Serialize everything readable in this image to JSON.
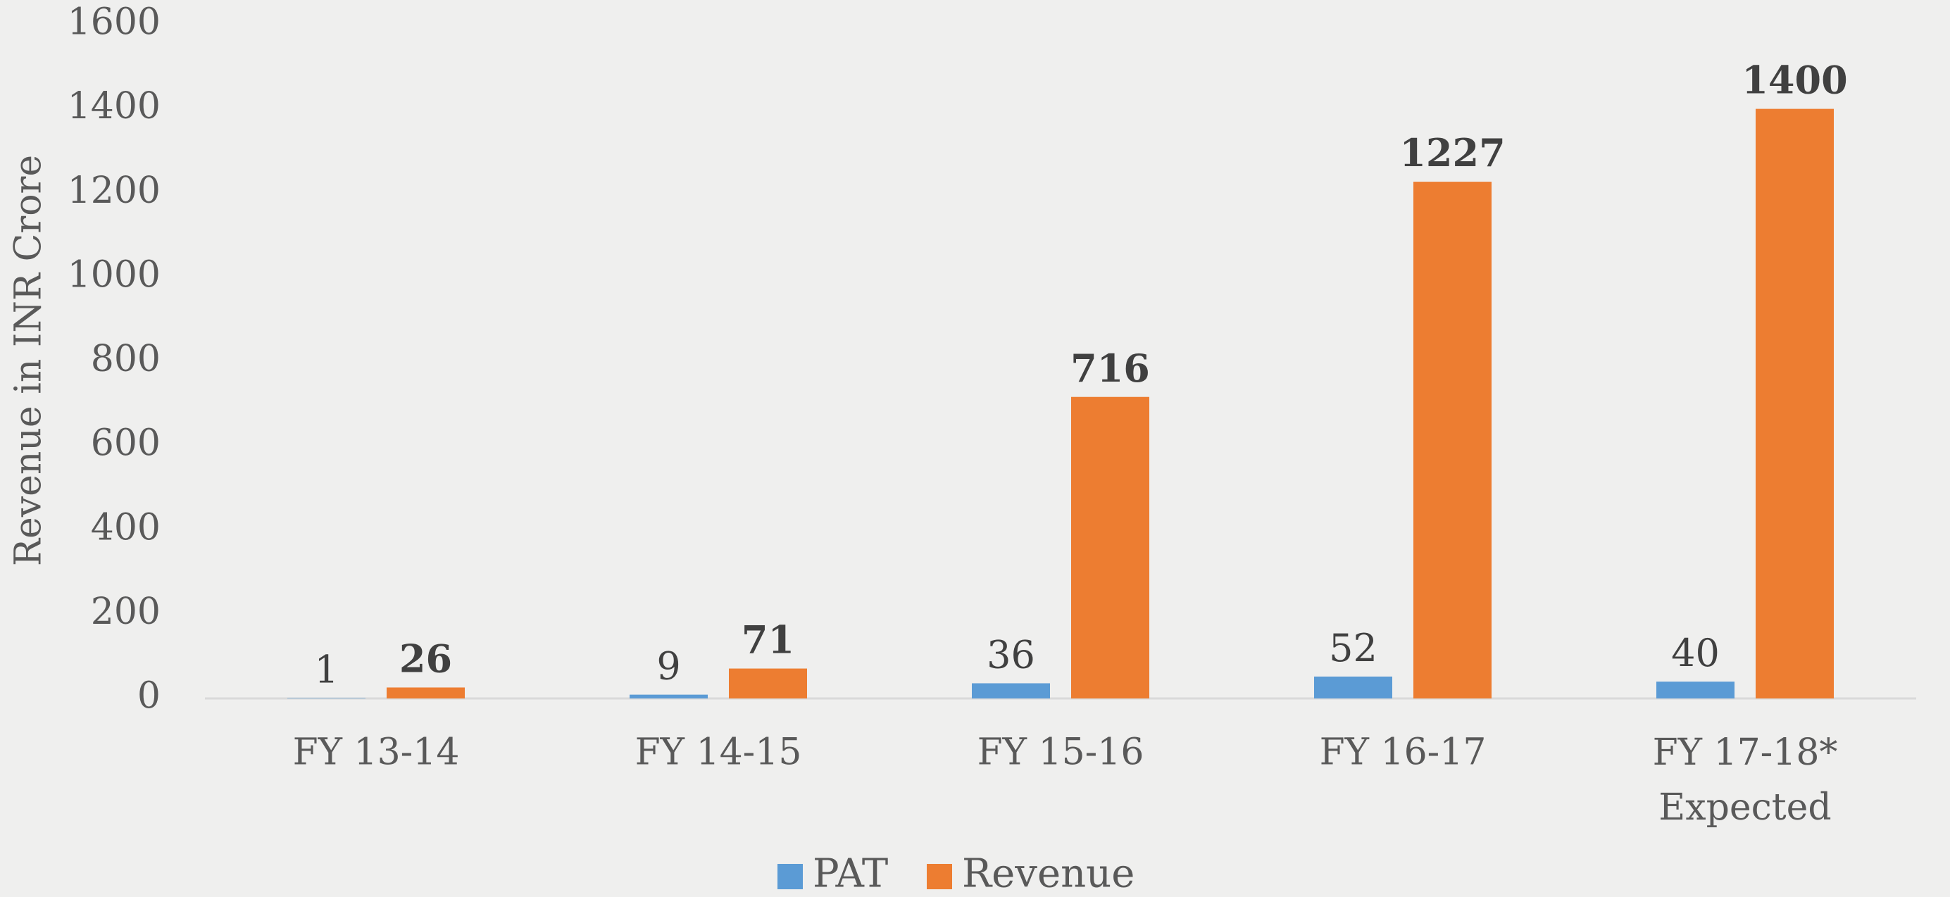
{
  "chart_data": {
    "type": "bar",
    "y_label": "Revenue in INR Crore",
    "categories": [
      "FY 13-14",
      "FY 14-15",
      "FY 15-16",
      "FY 16-17",
      "FY 17-18*\nExpected"
    ],
    "series": [
      {
        "name": "PAT",
        "color": "#5b9bd5",
        "values": [
          1,
          9,
          36,
          52,
          40
        ]
      },
      {
        "name": "Revenue",
        "color": "#ed7d31",
        "values": [
          26,
          71,
          716,
          1227,
          1400
        ]
      }
    ],
    "ylim": [
      0,
      1600
    ],
    "yticks": [
      0,
      200,
      400,
      600,
      800,
      1000,
      1200,
      1400,
      1600
    ],
    "grid": false,
    "legend": "bottom"
  }
}
